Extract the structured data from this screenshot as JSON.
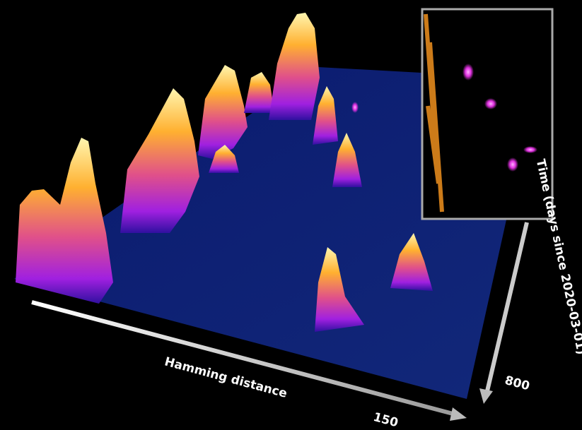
{
  "x_axis": {
    "label": "Hamming distance",
    "tick": "150"
  },
  "y_axis": {
    "label": "Time (days since 2020-03-01)",
    "tick": "800"
  }
}
